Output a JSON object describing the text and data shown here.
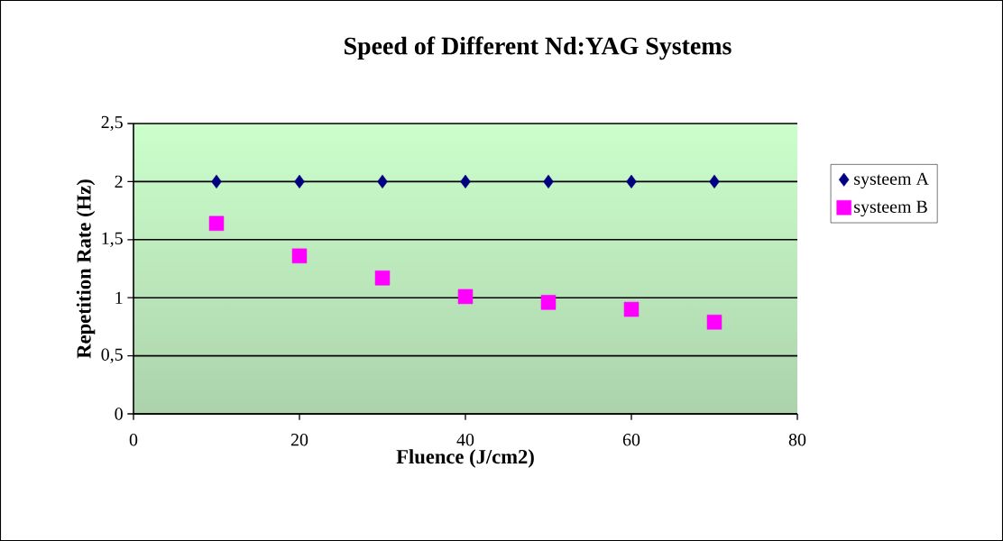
{
  "chart_data": {
    "type": "scatter",
    "title": "Speed of Different Nd:YAG Systems",
    "xlabel": "Fluence (J/cm2)",
    "ylabel": "Repetition Rate (Hz)",
    "x": [
      10,
      20,
      30,
      40,
      50,
      60,
      70
    ],
    "series": [
      {
        "name": "systeem A",
        "color": "#000080",
        "marker": "diamond",
        "values": [
          2,
          2,
          2,
          2,
          2,
          2,
          2
        ]
      },
      {
        "name": "systeem B",
        "color": "#ff00ff",
        "marker": "square",
        "values": [
          1.64,
          1.36,
          1.17,
          1.01,
          0.96,
          0.9,
          0.79
        ]
      }
    ],
    "xlim": [
      0,
      80
    ],
    "xticks": [
      0,
      20,
      40,
      60,
      80
    ],
    "ylim": [
      0,
      2.5
    ],
    "yticks": [
      0,
      {
        "value": 0.5,
        "label": "0,5"
      },
      1,
      {
        "value": 1.5,
        "label": "1,5"
      },
      2,
      {
        "value": 2.5,
        "label": "2,5"
      }
    ],
    "grid": "y",
    "legend": "right"
  }
}
